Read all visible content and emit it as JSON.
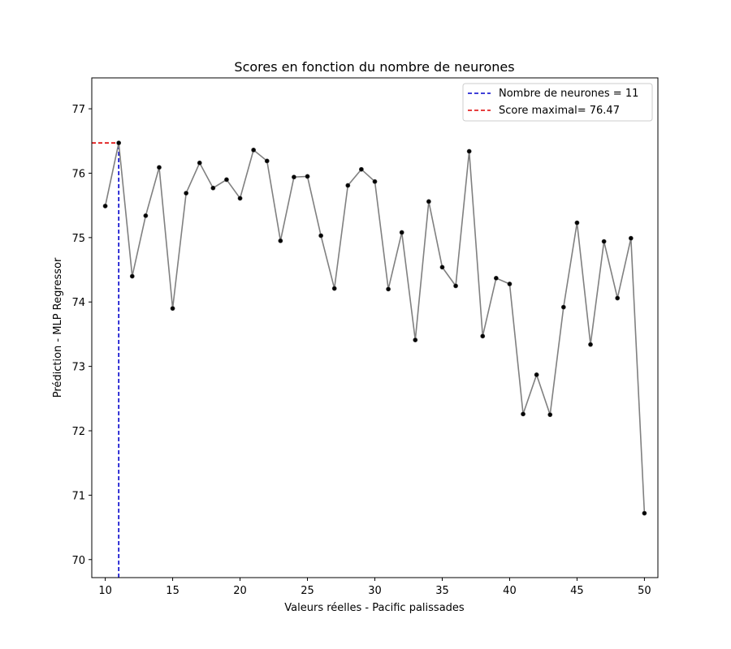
{
  "chart_data": {
    "type": "line",
    "title": "Scores en fonction du nombre de neurones",
    "xlabel": "Valeurs réelles - Pacific palissades",
    "ylabel": "Prédiction - MLP Regressor",
    "xlim": [
      9.0,
      51.0
    ],
    "ylim": [
      69.72,
      77.48
    ],
    "xticks": [
      10,
      15,
      20,
      25,
      30,
      35,
      40,
      45,
      50
    ],
    "yticks": [
      70,
      71,
      72,
      73,
      74,
      75,
      76,
      77
    ],
    "x": [
      10,
      11,
      12,
      13,
      14,
      15,
      16,
      17,
      18,
      19,
      20,
      21,
      22,
      23,
      24,
      25,
      26,
      27,
      28,
      29,
      30,
      31,
      32,
      33,
      34,
      35,
      36,
      37,
      38,
      39,
      40,
      41,
      42,
      43,
      44,
      45,
      46,
      47,
      48,
      49,
      50
    ],
    "y": [
      75.49,
      76.47,
      74.4,
      75.34,
      76.09,
      73.9,
      75.69,
      76.16,
      75.77,
      75.9,
      75.61,
      76.36,
      76.19,
      74.95,
      75.94,
      75.95,
      75.03,
      74.21,
      75.81,
      76.06,
      75.87,
      74.2,
      75.08,
      73.41,
      75.56,
      74.54,
      74.25,
      76.34,
      73.47,
      74.37,
      74.28,
      72.26,
      72.87,
      72.25,
      73.92,
      75.23,
      73.34,
      74.94,
      74.06,
      74.99,
      70.72
    ],
    "line_color": "#808080",
    "marker_color": "#000000",
    "grid": false,
    "legend_position": "upper-right",
    "reference_lines": [
      {
        "label": "Nombre de neurones = 11",
        "orientation": "vertical",
        "x": 11,
        "y_from": 69.72,
        "y_to": 76.47,
        "color": "#0000cc",
        "style": "dashed"
      },
      {
        "label": "Score maximal= 76.47",
        "orientation": "horizontal",
        "y": 76.47,
        "x_from": 9.0,
        "x_to": 11,
        "color": "#dd0000",
        "style": "dashed"
      }
    ]
  }
}
